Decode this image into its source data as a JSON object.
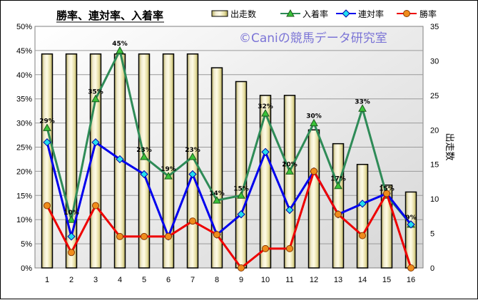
{
  "chart_data": {
    "type": "bar-line-combo",
    "title": "勝率、連対率、入着率",
    "watermark": "©Caniの競馬データ研究室",
    "categories": [
      "1",
      "2",
      "3",
      "4",
      "5",
      "6",
      "7",
      "8",
      "9",
      "10",
      "11",
      "12",
      "13",
      "14",
      "15",
      "16"
    ],
    "bar_series": {
      "name": "出走数",
      "axis": "right",
      "color": "#f4eea0",
      "values": [
        31,
        31,
        31,
        31,
        31,
        31,
        31,
        29,
        27,
        25,
        25,
        20,
        18,
        15,
        12,
        11
      ]
    },
    "line_series": [
      {
        "name": "入着率",
        "marker": "triangle",
        "color": "#2e8b57",
        "marker_color": "#39c239",
        "values": [
          29,
          10,
          35,
          45,
          23,
          19,
          23,
          14,
          15,
          32,
          20,
          30,
          17,
          33,
          15,
          9
        ],
        "labels": [
          "29%",
          "10%",
          "35%",
          "45%",
          "23%",
          "19%",
          "23%",
          "14%",
          "15%",
          "32%",
          "20%",
          "30%",
          "17%",
          "33%",
          "15%",
          "9%"
        ]
      },
      {
        "name": "連対率",
        "marker": "diamond",
        "color": "#0000ee",
        "marker_color": "#22e0ee",
        "values": [
          26,
          6.5,
          26,
          22.5,
          19.4,
          6.5,
          19.4,
          6.9,
          11.1,
          24,
          12,
          20,
          11.1,
          13.3,
          15.4,
          9
        ]
      },
      {
        "name": "勝率",
        "marker": "circle",
        "color": "#ee0000",
        "marker_color": "#f08c1c",
        "values": [
          12.9,
          3.2,
          12.9,
          6.5,
          6.5,
          6.5,
          9.7,
          6.9,
          0,
          4,
          4,
          20,
          11.1,
          6.7,
          15.4,
          0
        ]
      }
    ],
    "y_left": {
      "min": 0,
      "max": 50,
      "step": 5,
      "format": "percent"
    },
    "y_right": {
      "title": "出走数",
      "min": 0,
      "max": 35,
      "step": 5
    },
    "grid": true,
    "legend_position": "top-right"
  }
}
